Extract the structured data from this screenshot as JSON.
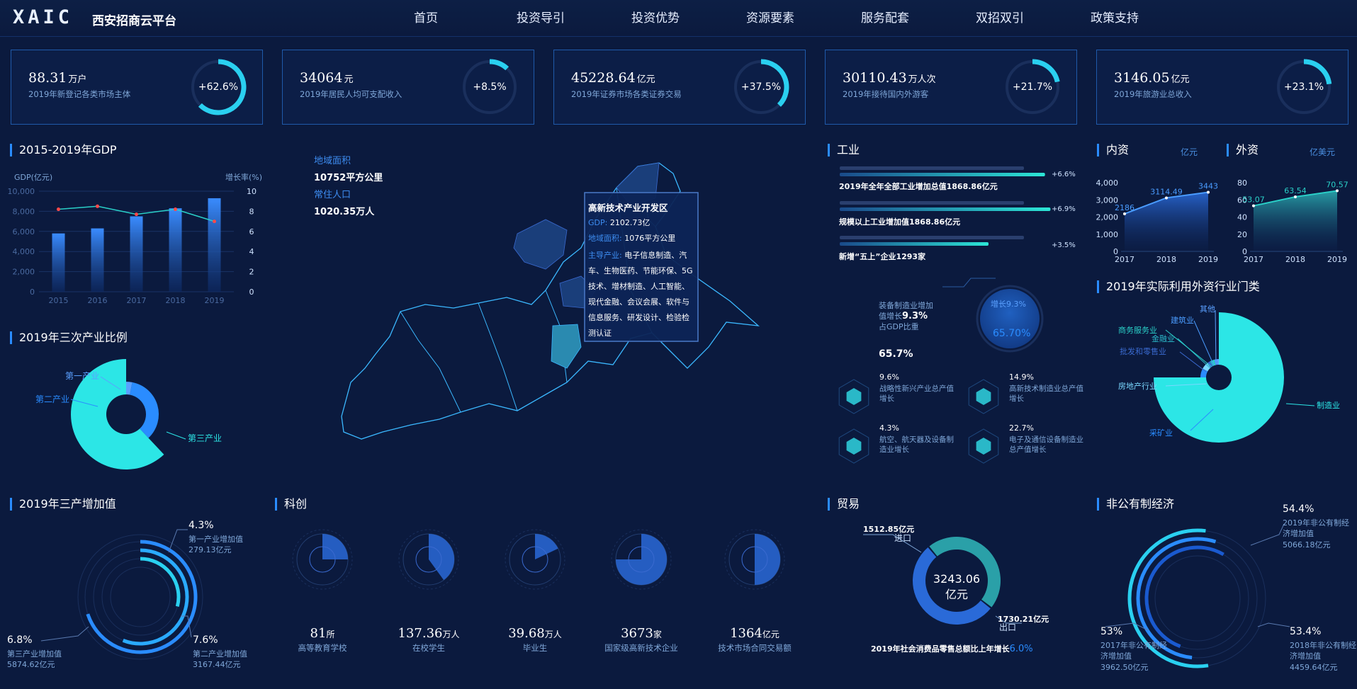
{
  "header": {
    "logo": "XAIC",
    "title": "西安招商云平台",
    "nav": [
      "首页",
      "投资导引",
      "投资优势",
      "资源要素",
      "服务配套",
      "双招双引",
      "政策支持"
    ]
  },
  "kpis": [
    {
      "value": "88.31",
      "unit": "万户",
      "label": "2019年新登记各类市场主体",
      "pct": "+62.6%",
      "fraction": 0.626
    },
    {
      "value": "34064",
      "unit": "元",
      "label": "2019年居民人均可支配收入",
      "pct": "+8.5%",
      "fraction": 0.085
    },
    {
      "value": "45228.64",
      "unit": "亿元",
      "label": "2019年证券市场各类证券交易",
      "pct": "+37.5%",
      "fraction": 0.375
    },
    {
      "value": "30110.43",
      "unit": "万人次",
      "label": "2019年接待国内外游客",
      "pct": "+21.7%",
      "fraction": 0.217
    },
    {
      "value": "3146.05",
      "unit": "亿元",
      "label": "2019年旅游业总收入",
      "pct": "+23.1%",
      "fraction": 0.231
    }
  ],
  "sections": {
    "gdp": "2015-2019年GDP",
    "tertiary_ratio": "2019年三次产业比例",
    "tertiary_added": "2019年三产增加值",
    "innovation": "科创",
    "industry": "工业",
    "domestic": "内资",
    "domestic_unit": "亿元",
    "foreign": "外资",
    "foreign_unit": "亿美元",
    "fdi_industry": "2019年实际利用外资行业门类",
    "trade": "贸易",
    "non_public": "非公有制经济"
  },
  "gdp_chart": {
    "ylabel_left": "GDP(亿元)",
    "ylabel_right": "增长率(%)",
    "yticks_left": [
      "10,000",
      "8,000",
      "6,000",
      "4,000",
      "2,000",
      "0"
    ],
    "yticks_right": [
      "10",
      "8",
      "6",
      "4",
      "2",
      "0"
    ]
  },
  "region": {
    "area_label": "地域面积",
    "area_value": "10752平方公里",
    "pop_label": "常住人口",
    "pop_value": "1020.35万人"
  },
  "map_tooltip": {
    "title": "高新技术产业开发区",
    "gdp_label": "GDP:",
    "gdp_value": "2102.73亿",
    "area_label": "地域面积:",
    "area_value": "1076平方公里",
    "industry_label": "主导产业:",
    "industry_value": "电子信息制造、汽车、生物医药、节能环保、5G技术、增材制造、人工智能、现代金融、会议会展、软件与信息服务、研发设计、检验检测认证"
  },
  "industry": {
    "bars": [
      {
        "label": "2019年全年全部工业增加总值1868.86亿元",
        "pct": "+6.6%",
        "value": 6.6
      },
      {
        "label": "规模以上工业增加值1868.86亿元",
        "pct": "+6.9%",
        "value": 6.9
      },
      {
        "label": "新增“五上”企业1293家",
        "pct": "+3.5%",
        "value": 3.5
      }
    ],
    "equip_label": "装备制造业增加值增长",
    "equip_growth": "9.3%",
    "equip_share_label": "占GDP比重",
    "equip_share": "65.7%",
    "bubble_growth": "增长9.3%",
    "bubble_share": "65.70%",
    "items": [
      {
        "pct": "9.6%",
        "desc": "战略性新兴产业总产值增长"
      },
      {
        "pct": "14.9%",
        "desc": "高新技术制造业总产值增长"
      },
      {
        "pct": "4.3%",
        "desc": "航空、航天器及设备制造业增长"
      },
      {
        "pct": "22.7%",
        "desc": "电子及通信设备制造业总产值增长"
      }
    ]
  },
  "innovation_items": [
    {
      "value": "81",
      "unit": "所",
      "label": "高等教育学校",
      "fraction": 0.25
    },
    {
      "value": "137.36",
      "unit": "万人",
      "label": "在校学生",
      "fraction": 0.4
    },
    {
      "value": "39.68",
      "unit": "万人",
      "label": "毕业生",
      "fraction": 0.18
    },
    {
      "value": "3673",
      "unit": "家",
      "label": "国家级高新技术企业",
      "fraction": 0.75
    },
    {
      "value": "1364",
      "unit": "亿元",
      "label": "技术市场合同交易额",
      "fraction": 0.5
    }
  ],
  "tertiary_added": {
    "items": [
      {
        "pct": "4.3%",
        "name": "第一产业增加值",
        "value": "279.13亿元"
      },
      {
        "pct": "7.6%",
        "name": "第二产业增加值",
        "value": "3167.44亿元"
      },
      {
        "pct": "6.8%",
        "name": "第三产业增加值",
        "value": "5874.62亿元"
      }
    ]
  },
  "trade": {
    "total": "3243.06",
    "total_unit": "亿元",
    "import_value": "1512.85亿元",
    "import_label": "进口",
    "export_value": "1730.21亿元",
    "export_label": "出口",
    "note": "2019年社会消费品零售总额比上年增长",
    "note_pct": "6.0%"
  },
  "non_public": {
    "top_pct": "54.4%",
    "top_desc": "2019年非公有制经济增加值",
    "top_value": "5066.18亿元",
    "left_pct": "53%",
    "left_desc": "2017年非公有制经济增加值",
    "left_value": "3962.50亿元",
    "right_pct": "53.4%",
    "right_desc": "2018年非公有制经济增加值",
    "right_value": "4459.64亿元"
  },
  "fdi_labels": [
    "其他",
    "建筑业",
    "商务服务业",
    "金融业",
    "批发和零售业",
    "房地产行业",
    "采矿业",
    "制造业"
  ],
  "chart_data": [
    {
      "type": "bar",
      "title": "2015-2019年GDP",
      "categories": [
        "2015",
        "2016",
        "2017",
        "2018",
        "2019"
      ],
      "series": [
        {
          "name": "GDP(亿元)",
          "values": [
            5800,
            6300,
            7500,
            8300,
            9300
          ]
        },
        {
          "name": "增长率(%)",
          "values": [
            8.2,
            8.5,
            7.7,
            8.2,
            7.0
          ]
        }
      ],
      "xlabel": "",
      "ylabel": "GDP(亿元)",
      "ylim": [
        0,
        10000
      ],
      "y2lim": [
        0,
        10
      ]
    },
    {
      "type": "pie",
      "title": "2019年三次产业比例",
      "categories": [
        "第一产业",
        "第二产业",
        "第三产业"
      ],
      "values": [
        3,
        35,
        62
      ]
    },
    {
      "type": "area",
      "title": "内资",
      "categories": [
        "2017",
        "2018",
        "2019"
      ],
      "values": [
        2186,
        3114.49,
        3443
      ],
      "ylim": [
        0,
        4000
      ]
    },
    {
      "type": "area",
      "title": "外资",
      "categories": [
        "2017",
        "2018",
        "2019"
      ],
      "values": [
        53.07,
        63.54,
        70.57
      ],
      "ylim": [
        0,
        80
      ]
    },
    {
      "type": "pie",
      "title": "2019年实际利用外资行业门类",
      "categories": [
        "制造业",
        "采矿业",
        "房地产行业",
        "批发和零售业",
        "金融业",
        "商务服务业",
        "建筑业",
        "其他"
      ],
      "values": [
        75,
        8,
        6,
        3,
        2,
        2,
        2,
        2
      ]
    },
    {
      "type": "pie",
      "title": "贸易",
      "categories": [
        "进口",
        "出口"
      ],
      "values": [
        1512.85,
        1730.21
      ]
    }
  ]
}
